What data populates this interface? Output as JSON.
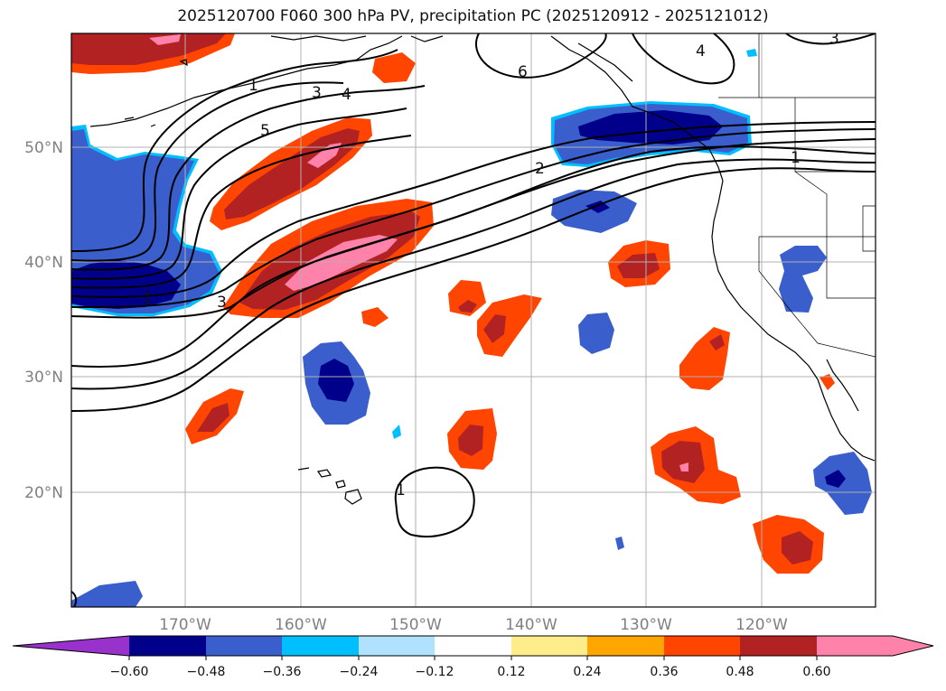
{
  "title": "2025120700 F060 300 hPa PV, precipitation PC (2025120912 - 2025121012)",
  "lat_labels": [
    "50°N",
    "40°N",
    "30°N",
    "20°N"
  ],
  "lon_labels": [
    "170°W",
    "160°W",
    "150°W",
    "140°W",
    "130°W",
    "120°W"
  ],
  "contour_labels": [
    "1",
    "3",
    "4",
    "5",
    "6",
    "4",
    "3",
    "2",
    "1",
    "1",
    "3",
    "1"
  ],
  "colorbar": {
    "ticks": [
      "−0.60",
      "−0.48",
      "−0.36",
      "−0.24",
      "−0.12",
      "0.12",
      "0.24",
      "0.36",
      "0.48",
      "0.60"
    ],
    "colors": [
      "#9932cc",
      "#00008b",
      "#3a5fcd",
      "#00bfff",
      "#b0e2ff",
      "#ffffff",
      "#ffec8b",
      "#ffa500",
      "#ff4500",
      "#b22222",
      "#ff82ab"
    ]
  },
  "colors": {
    "neg_strong": "#00008b",
    "neg_mid": "#3a5fcd",
    "neg_weak": "#00bfff",
    "pos_weak": "#ffec8b",
    "pos_mid": "#ff4500",
    "pos_strong": "#b22222",
    "pos_max": "#ff82ab",
    "grid": "#b0b0b0"
  }
}
